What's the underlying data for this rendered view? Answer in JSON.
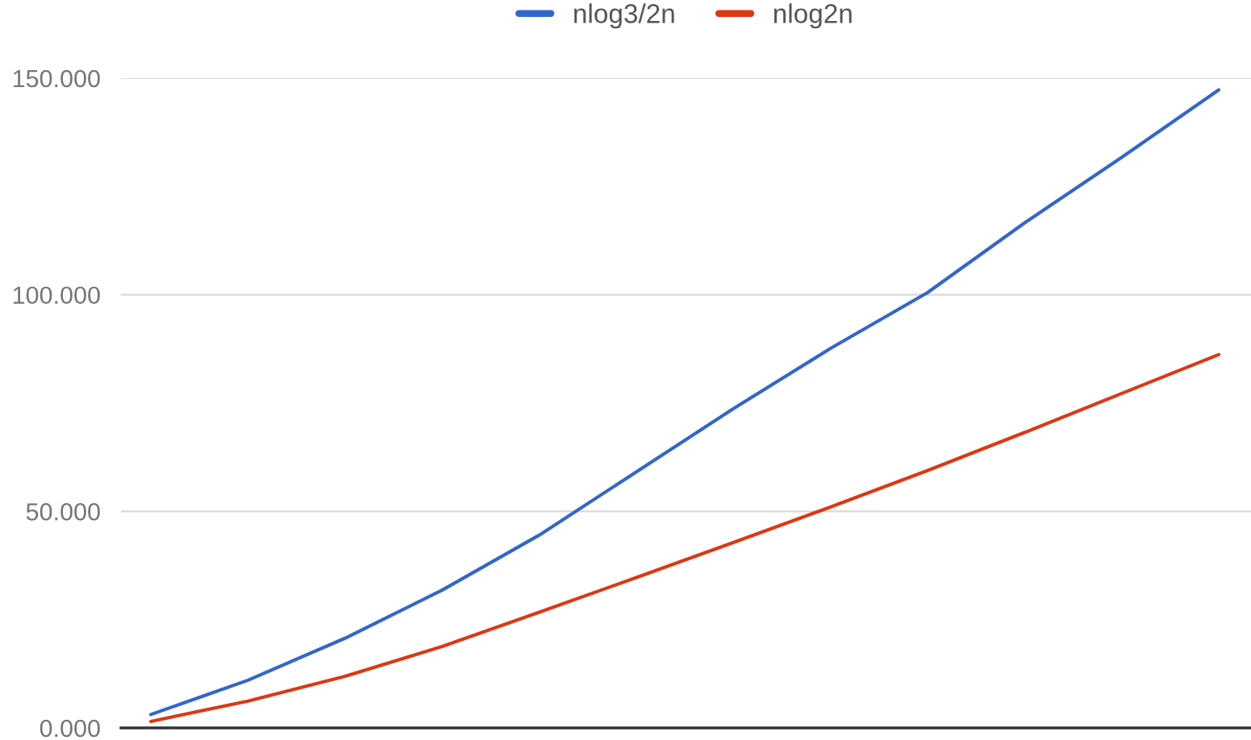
{
  "chart_data": {
    "type": "line",
    "categories": [
      null,
      null,
      null,
      null,
      null,
      null,
      null,
      null,
      null,
      null,
      null,
      null
    ],
    "series": [
      {
        "name": "nlog3/2n",
        "color": "#3366cc",
        "values": [
          3.1,
          11.0,
          20.7,
          31.8,
          44.5,
          59.1,
          73.7,
          87.6,
          100.5,
          116.6,
          131.7,
          147.3
        ]
      },
      {
        "name": "nlog2n",
        "color": "#dc3912",
        "values": [
          1.5,
          6.2,
          11.9,
          18.8,
          26.7,
          34.7,
          42.8,
          51.0,
          59.4,
          68.2,
          77.2,
          86.2
        ]
      }
    ],
    "ylim": [
      0,
      150
    ],
    "yticks": [
      {
        "value": 0,
        "label": "0.000"
      },
      {
        "value": 50,
        "label": "50.000"
      },
      {
        "value": 100,
        "label": "100.000"
      },
      {
        "value": 150,
        "label": "150.000"
      }
    ],
    "grid": "y",
    "legend": "top",
    "marker": "none",
    "line_style": "solid"
  }
}
